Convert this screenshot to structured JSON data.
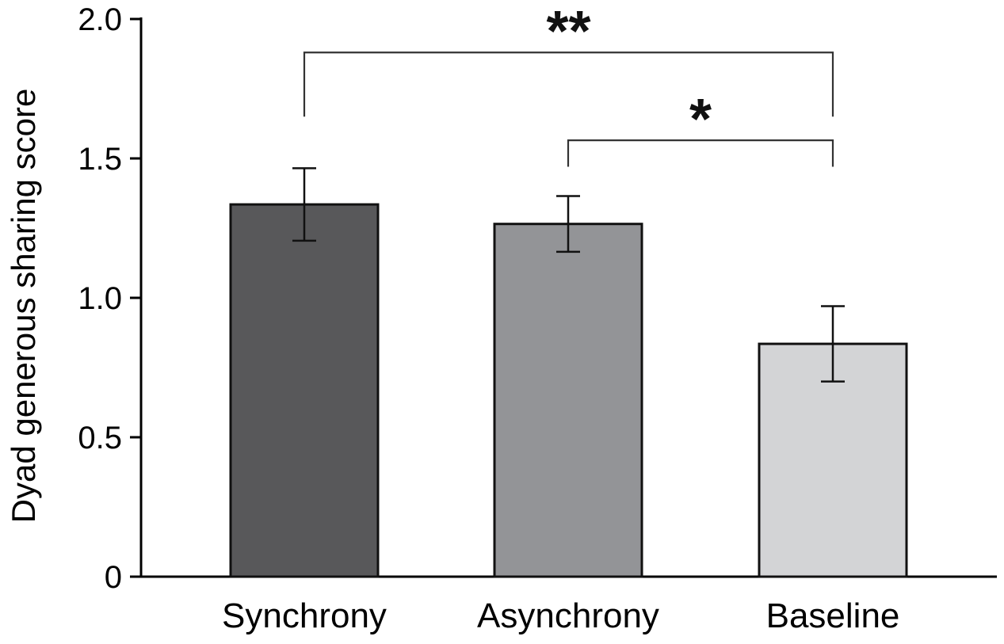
{
  "chart_data": {
    "type": "bar",
    "categories": [
      "Synchrony",
      "Asynchrony",
      "Baseline"
    ],
    "values": [
      1.335,
      1.265,
      0.835
    ],
    "errors": [
      0.13,
      0.1,
      0.135
    ],
    "colors": [
      "#58585a",
      "#939497",
      "#d3d4d6"
    ],
    "xlabel": "",
    "ylabel": "Dyad generous sharing score",
    "ylim": [
      0,
      2.0
    ],
    "yticks": [
      {
        "value": 0,
        "label": "0"
      },
      {
        "value": 0.5,
        "label": "0.5"
      },
      {
        "value": 1.0,
        "label": "1.0"
      },
      {
        "value": 1.5,
        "label": "1.5"
      },
      {
        "value": 2.0,
        "label": "2.0"
      }
    ],
    "annotations": [
      {
        "from": 0,
        "to": 2,
        "label": "**",
        "level": 1.88,
        "drop": 1.65
      },
      {
        "from": 1,
        "to": 2,
        "label": "*",
        "level": 1.565,
        "drop": 1.47
      }
    ],
    "grid": false,
    "legend": "none"
  }
}
